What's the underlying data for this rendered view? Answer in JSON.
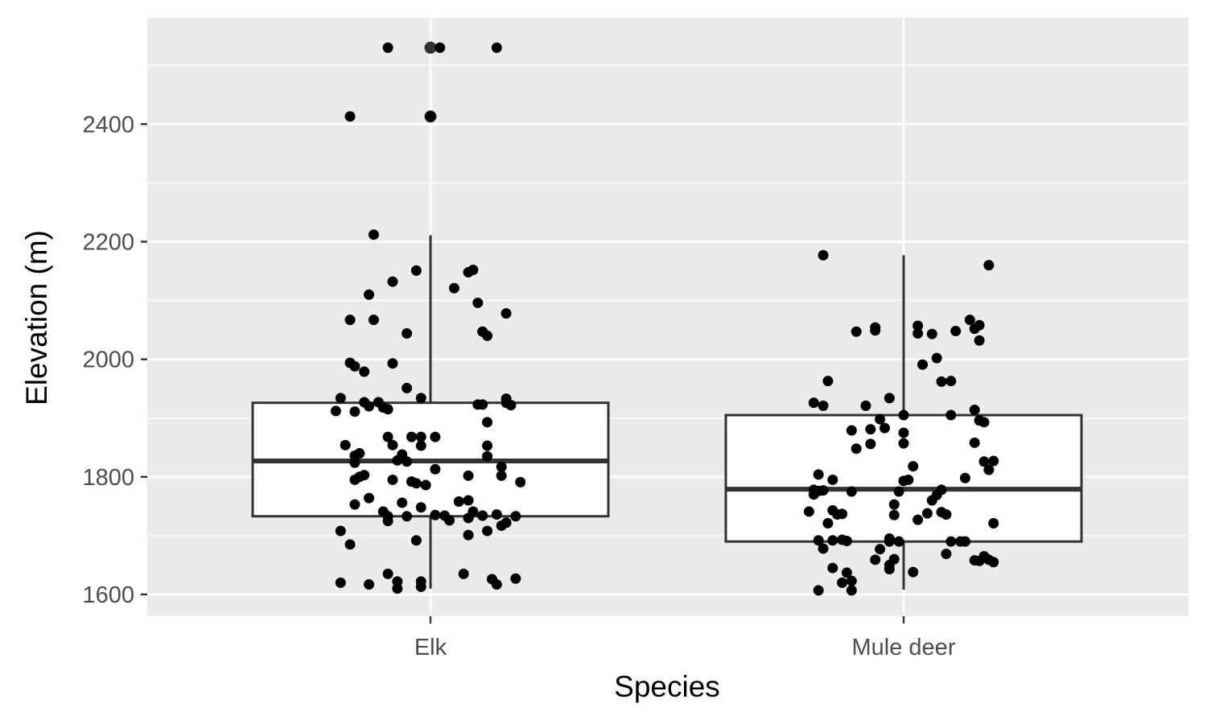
{
  "chart_data": {
    "type": "box",
    "title": "",
    "xlabel": "Species",
    "ylabel": "Elevation (m)",
    "categories": [
      "Elk",
      "Mule deer"
    ],
    "ylim": [
      1563,
      2581
    ],
    "yticks": [
      1600,
      1800,
      2000,
      2200,
      2400
    ],
    "grid": true,
    "legend": "none",
    "colors": {
      "panel": "#ebebeb",
      "grid": "#ffffff",
      "box_fill": "#ffffff",
      "box_line": "#333333",
      "point": "#000000",
      "tick_text": "#4d4d4d",
      "axis_title": "#000000"
    },
    "boxes": [
      {
        "category": "Elk",
        "whisker_low": 1610,
        "q1": 1733,
        "median": 1827,
        "q3": 1926,
        "whisker_high": 2211,
        "outliers": [
          2530,
          2413
        ]
      },
      {
        "category": "Mule deer",
        "whisker_low": 1608,
        "q1": 1690,
        "median": 1779,
        "q3": 1905,
        "whisker_high": 2177,
        "outliers": []
      }
    ],
    "series": [
      {
        "category": "Elk",
        "points": [
          [
            -0.09,
            2530
          ],
          [
            0.02,
            2530
          ],
          [
            0.14,
            2530
          ],
          [
            -0.17,
            2413
          ],
          [
            0.0,
            2413
          ],
          [
            -0.12,
            2212
          ],
          [
            -0.13,
            2110
          ],
          [
            -0.08,
            2132
          ],
          [
            -0.03,
            2151
          ],
          [
            0.05,
            2121
          ],
          [
            0.08,
            2148
          ],
          [
            0.09,
            2152
          ],
          [
            0.1,
            2096
          ],
          [
            0.16,
            2078
          ],
          [
            -0.17,
            2067
          ],
          [
            -0.12,
            2067
          ],
          [
            -0.05,
            2044
          ],
          [
            0.11,
            2047
          ],
          [
            0.12,
            2040
          ],
          [
            -0.17,
            1994
          ],
          [
            -0.16,
            1988
          ],
          [
            -0.14,
            1979
          ],
          [
            -0.08,
            1993
          ],
          [
            -0.05,
            1951
          ],
          [
            -0.19,
            1934
          ],
          [
            -0.2,
            1912
          ],
          [
            -0.16,
            1911
          ],
          [
            -0.14,
            1927
          ],
          [
            -0.13,
            1920
          ],
          [
            -0.11,
            1927
          ],
          [
            -0.1,
            1918
          ],
          [
            -0.09,
            1915
          ],
          [
            -0.02,
            1934
          ],
          [
            0.1,
            1923
          ],
          [
            0.11,
            1923
          ],
          [
            0.16,
            1933
          ],
          [
            0.16,
            1926
          ],
          [
            0.17,
            1922
          ],
          [
            0.12,
            1893
          ],
          [
            -0.18,
            1854
          ],
          [
            -0.16,
            1836
          ],
          [
            -0.16,
            1824
          ],
          [
            -0.15,
            1840
          ],
          [
            -0.09,
            1868
          ],
          [
            -0.08,
            1854
          ],
          [
            -0.06,
            1834
          ],
          [
            -0.07,
            1828
          ],
          [
            -0.06,
            1838
          ],
          [
            -0.05,
            1826
          ],
          [
            -0.04,
            1868
          ],
          [
            -0.02,
            1868
          ],
          [
            -0.02,
            1853
          ],
          [
            0.01,
            1868
          ],
          [
            0.12,
            1853
          ],
          [
            0.12,
            1835
          ],
          [
            -0.16,
            1795
          ],
          [
            -0.15,
            1800
          ],
          [
            -0.14,
            1803
          ],
          [
            -0.16,
            1753
          ],
          [
            -0.13,
            1764
          ],
          [
            -0.08,
            1795
          ],
          [
            -0.04,
            1792
          ],
          [
            -0.03,
            1789
          ],
          [
            -0.01,
            1786
          ],
          [
            0.01,
            1813
          ],
          [
            0.08,
            1802
          ],
          [
            0.15,
            1817
          ],
          [
            0.15,
            1802
          ],
          [
            0.19,
            1791
          ],
          [
            -0.1,
            1741
          ],
          [
            -0.09,
            1733
          ],
          [
            -0.09,
            1725
          ],
          [
            -0.06,
            1756
          ],
          [
            -0.05,
            1733
          ],
          [
            -0.02,
            1748
          ],
          [
            0.01,
            1735
          ],
          [
            0.03,
            1734
          ],
          [
            0.04,
            1726
          ],
          [
            0.06,
            1758
          ],
          [
            0.08,
            1760
          ],
          [
            0.08,
            1730
          ],
          [
            0.09,
            1741
          ],
          [
            0.11,
            1734
          ],
          [
            0.11,
            1734
          ],
          [
            0.14,
            1736
          ],
          [
            0.15,
            1717
          ],
          [
            0.16,
            1722
          ],
          [
            0.18,
            1733
          ],
          [
            -0.19,
            1708
          ],
          [
            -0.17,
            1685
          ],
          [
            -0.03,
            1692
          ],
          [
            0.08,
            1701
          ],
          [
            0.12,
            1708
          ],
          [
            -0.09,
            1635
          ],
          [
            -0.07,
            1622
          ],
          [
            -0.07,
            1610
          ],
          [
            -0.02,
            1622
          ],
          [
            -0.02,
            1613
          ],
          [
            0.07,
            1635
          ],
          [
            0.13,
            1626
          ],
          [
            0.14,
            1617
          ],
          [
            0.18,
            1627
          ],
          [
            -0.19,
            1620
          ],
          [
            -0.13,
            1617
          ]
        ]
      },
      {
        "category": "Mule deer",
        "points": [
          [
            -0.17,
            2177
          ],
          [
            0.18,
            2160
          ],
          [
            -0.1,
            2047
          ],
          [
            -0.06,
            2049
          ],
          [
            -0.06,
            2054
          ],
          [
            0.03,
            2057
          ],
          [
            0.03,
            2044
          ],
          [
            0.06,
            2043
          ],
          [
            0.11,
            2048
          ],
          [
            0.14,
            2067
          ],
          [
            0.15,
            2052
          ],
          [
            0.16,
            2058
          ],
          [
            0.16,
            2032
          ],
          [
            0.04,
            1991
          ],
          [
            0.07,
            2002
          ],
          [
            0.08,
            1962
          ],
          [
            0.1,
            1963
          ],
          [
            -0.16,
            1963
          ],
          [
            -0.19,
            1926
          ],
          [
            -0.17,
            1921
          ],
          [
            -0.08,
            1921
          ],
          [
            -0.05,
            1898
          ],
          [
            -0.03,
            1934
          ],
          [
            0.0,
            1905
          ],
          [
            0.1,
            1905
          ],
          [
            0.15,
            1914
          ],
          [
            0.16,
            1896
          ],
          [
            0.17,
            1893
          ],
          [
            -0.11,
            1879
          ],
          [
            -0.1,
            1848
          ],
          [
            -0.07,
            1856
          ],
          [
            -0.07,
            1881
          ],
          [
            -0.04,
            1883
          ],
          [
            0.0,
            1857
          ],
          [
            0.0,
            1875
          ],
          [
            0.02,
            1818
          ],
          [
            0.15,
            1858
          ],
          [
            0.17,
            1826
          ],
          [
            0.18,
            1812
          ],
          [
            0.19,
            1827
          ],
          [
            -0.18,
            1804
          ],
          [
            -0.19,
            1778
          ],
          [
            -0.18,
            1776
          ],
          [
            -0.19,
            1770
          ],
          [
            -0.17,
            1777
          ],
          [
            -0.15,
            1795
          ],
          [
            -0.11,
            1775
          ],
          [
            -0.02,
            1753
          ],
          [
            -0.01,
            1775
          ],
          [
            0.0,
            1793
          ],
          [
            0.01,
            1795
          ],
          [
            0.06,
            1760
          ],
          [
            0.07,
            1769
          ],
          [
            0.08,
            1778
          ],
          [
            0.13,
            1798
          ],
          [
            -0.2,
            1741
          ],
          [
            -0.16,
            1721
          ],
          [
            -0.15,
            1743
          ],
          [
            -0.14,
            1736
          ],
          [
            -0.13,
            1737
          ],
          [
            -0.02,
            1735
          ],
          [
            0.03,
            1727
          ],
          [
            0.05,
            1738
          ],
          [
            0.08,
            1740
          ],
          [
            0.09,
            1736
          ],
          [
            0.19,
            1721
          ],
          [
            -0.18,
            1692
          ],
          [
            -0.17,
            1678
          ],
          [
            -0.15,
            1692
          ],
          [
            -0.13,
            1693
          ],
          [
            -0.12,
            1691
          ],
          [
            -0.03,
            1695
          ],
          [
            -0.03,
            1690
          ],
          [
            -0.01,
            1690
          ],
          [
            0.1,
            1690
          ],
          [
            0.12,
            1690
          ],
          [
            0.13,
            1690
          ],
          [
            0.13,
            1690
          ],
          [
            0.09,
            1669
          ],
          [
            -0.15,
            1645
          ],
          [
            -0.13,
            1620
          ],
          [
            -0.12,
            1637
          ],
          [
            -0.11,
            1623
          ],
          [
            -0.11,
            1607
          ],
          [
            -0.06,
            1659
          ],
          [
            -0.05,
            1677
          ],
          [
            -0.02,
            1660
          ],
          [
            -0.03,
            1650
          ],
          [
            -0.03,
            1643
          ],
          [
            0.02,
            1638
          ],
          [
            0.15,
            1658
          ],
          [
            0.16,
            1657
          ],
          [
            0.17,
            1665
          ],
          [
            0.18,
            1659
          ],
          [
            0.19,
            1655
          ],
          [
            -0.18,
            1607
          ]
        ]
      }
    ]
  }
}
